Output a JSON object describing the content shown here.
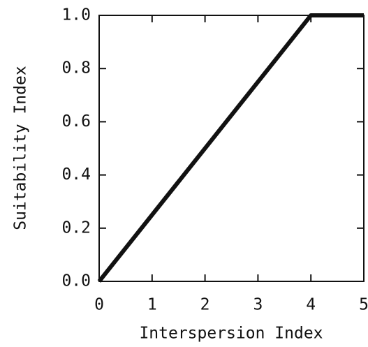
{
  "chart_data": {
    "type": "line",
    "xlabel": "Interspersion Index",
    "ylabel": "Suitability Index",
    "x": [
      0,
      4,
      5
    ],
    "values": [
      0,
      1,
      1
    ],
    "color": "#111111",
    "xlim": [
      0,
      5
    ],
    "xticks": [
      0,
      1,
      2,
      3,
      4,
      5
    ],
    "ylim": [
      0,
      1
    ],
    "yticks": [
      {
        "value": 0,
        "label": "0.0"
      },
      {
        "value": 0.2,
        "label": "0.2"
      },
      {
        "value": 0.4,
        "label": "0.4"
      },
      {
        "value": 0.6,
        "label": "0.6"
      },
      {
        "value": 0.8,
        "label": "0.8"
      },
      {
        "value": 1,
        "label": "1.0"
      }
    ],
    "grid": false
  }
}
